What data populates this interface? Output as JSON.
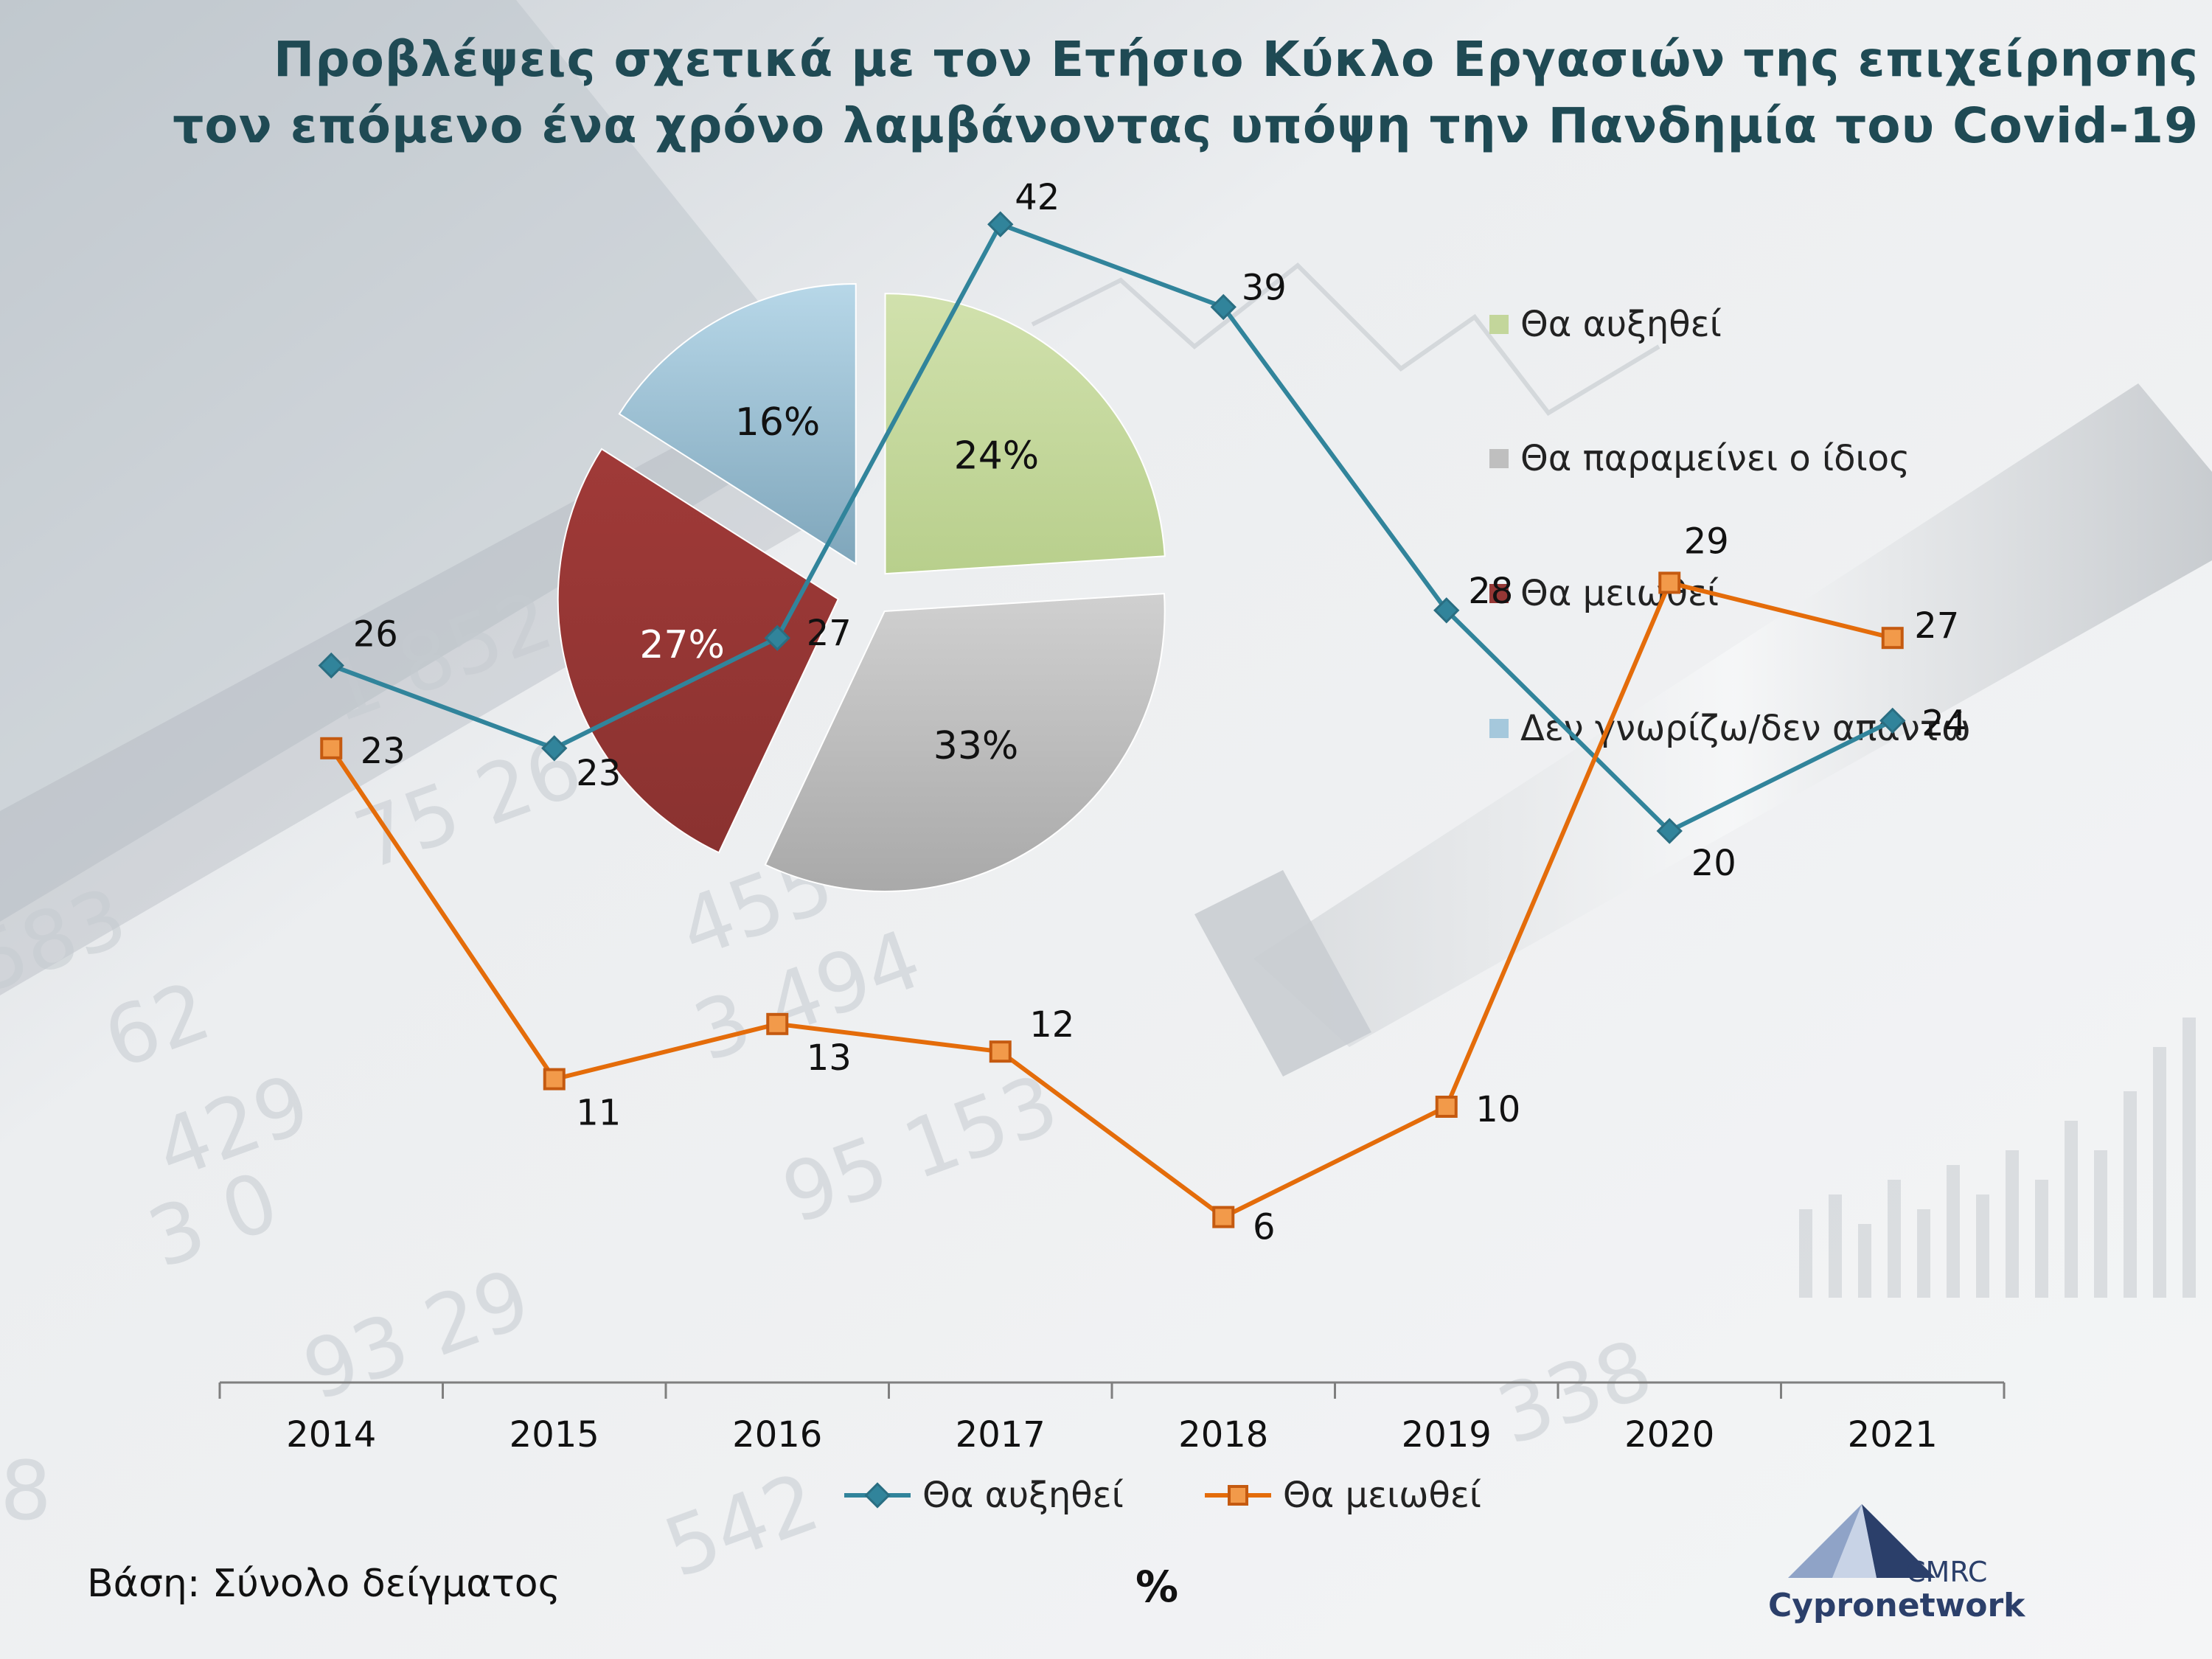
{
  "title": {
    "line1": "Προβλέψεις σχετικά με τον Ετήσιο Κύκλο Εργασιών της επιχείρησης",
    "line2": "τον επόμενο ένα χρόνο λαμβάνοντας υπόψη την Πανδημία του Covid-19"
  },
  "footer": {
    "base": "Βάση: Σύνολο δείγματος",
    "unit": "%"
  },
  "logo": {
    "short": "CMRC",
    "name": "Cypronetwork"
  },
  "colors": {
    "title": "#1f4a54",
    "increase": "#c3d69b",
    "same": "#bfbfbf",
    "decrease": "#953735",
    "dontknow": "#a5c8dc",
    "line_increase": "#31849b",
    "line_decrease": "#e46c0a"
  },
  "chart_data": [
    {
      "type": "pie",
      "slices": [
        {
          "label": "Θα αυξηθεί",
          "value": 24,
          "display": "24%",
          "color": "#c3d69b"
        },
        {
          "label": "Θα παραμείνει ο ίδιος",
          "value": 33,
          "display": "33%",
          "color": "#bfbfbf"
        },
        {
          "label": "Θα μειωθεί",
          "value": 27,
          "display": "27%",
          "color": "#953735"
        },
        {
          "label": "Δεν γνωρίζω/δεν απαντώ",
          "value": 16,
          "display": "16%",
          "color": "#a5c8dc"
        }
      ],
      "legend_position": "right"
    },
    {
      "type": "line",
      "categories": [
        "2014",
        "2015",
        "2016",
        "2017",
        "2018",
        "2019",
        "2020",
        "2021"
      ],
      "series": [
        {
          "name": "Θα αυξηθεί",
          "values": [
            26,
            23,
            27,
            42,
            39,
            28,
            20,
            24
          ],
          "color": "#31849b",
          "marker": "diamond"
        },
        {
          "name": "Θα μειωθεί",
          "values": [
            23,
            11,
            13,
            12,
            6,
            10,
            29,
            27
          ],
          "color": "#e46c0a",
          "marker": "square"
        }
      ],
      "ylim": [
        0,
        50
      ],
      "legend_position": "bottom",
      "grid": false
    }
  ]
}
